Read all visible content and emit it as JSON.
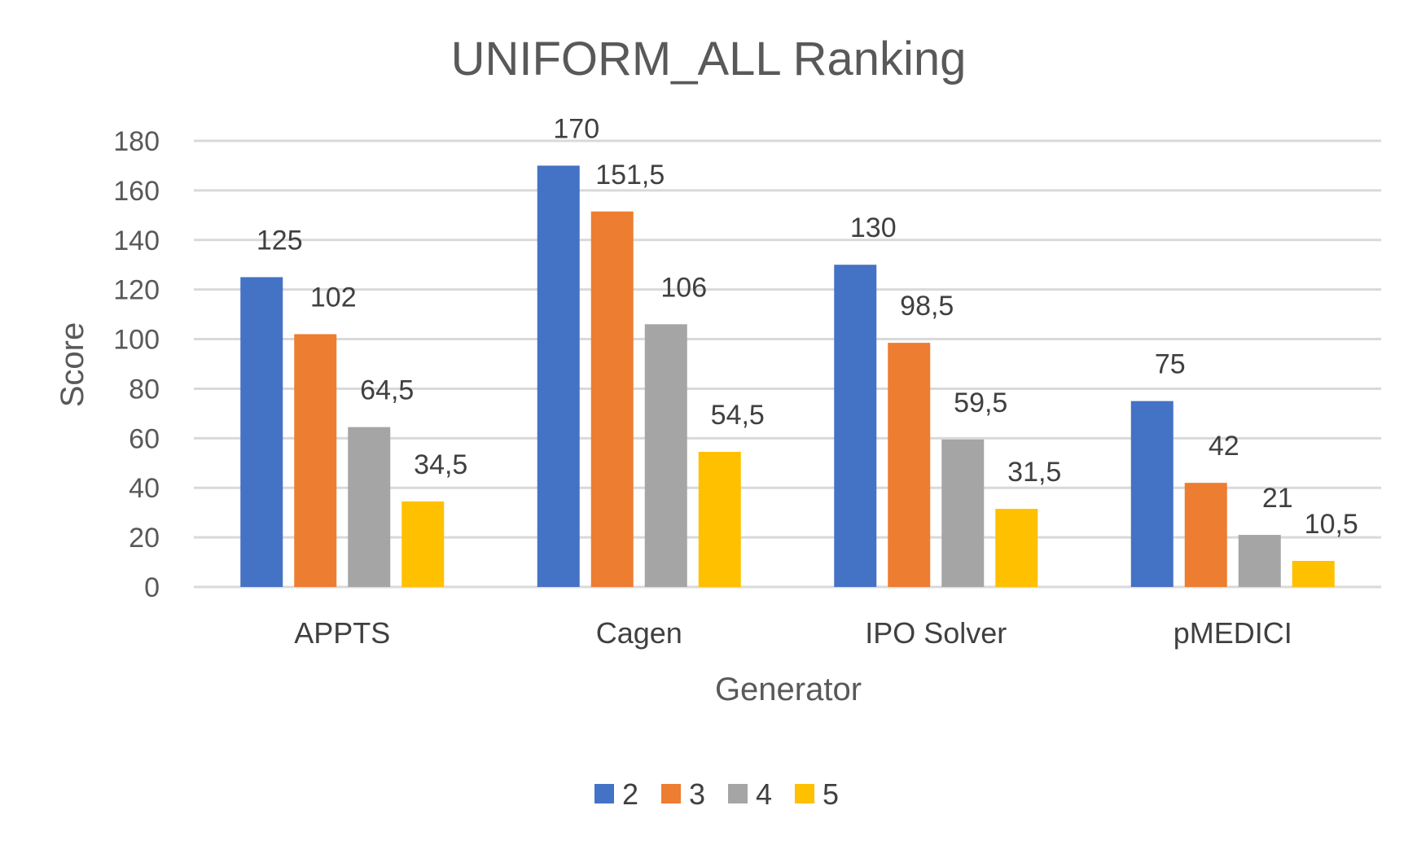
{
  "chart_data": {
    "type": "bar",
    "title": "UNIFORM_ALL Ranking",
    "xlabel": "Generator",
    "ylabel": "Score",
    "categories": [
      "APPTS",
      "Cagen",
      "IPO Solver",
      "pMEDICI"
    ],
    "series": [
      {
        "name": "2",
        "color": "#4472C4",
        "values": [
          125,
          170,
          130,
          75
        ],
        "labels": [
          "125",
          "170",
          "130",
          "75"
        ]
      },
      {
        "name": "3",
        "color": "#ED7D31",
        "values": [
          102,
          151.5,
          98.5,
          42
        ],
        "labels": [
          "102",
          "151,5",
          "98,5",
          "42"
        ]
      },
      {
        "name": "4",
        "color": "#A5A5A5",
        "values": [
          64.5,
          106,
          59.5,
          21
        ],
        "labels": [
          "64,5",
          "106",
          "59,5",
          "21"
        ]
      },
      {
        "name": "5",
        "color": "#FFC000",
        "values": [
          34.5,
          54.5,
          31.5,
          10.5
        ],
        "labels": [
          "34,5",
          "54,5",
          "31,5",
          "10,5"
        ]
      }
    ],
    "yticks": [
      "0",
      "20",
      "40",
      "60",
      "80",
      "100",
      "120",
      "140",
      "160",
      "180"
    ],
    "ylim": [
      0,
      180
    ],
    "grid": true,
    "legend_position": "bottom"
  }
}
